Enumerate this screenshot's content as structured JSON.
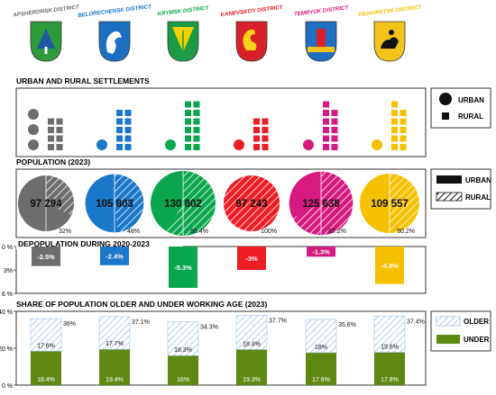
{
  "districts": [
    {
      "name": "APSHERONSK DISTRICT",
      "color": "#6d6d6d",
      "emblem": "green-shield-with-blue-and-white-tree-icon"
    },
    {
      "name": "BELORECHENSK DISTRICT",
      "color": "#1a77c9",
      "emblem": "blue-shield-with-white-stag-head-icon"
    },
    {
      "name": "KRYMSK DISTRICT",
      "color": "#0aa64e",
      "emblem": "green-shield-with-yellow-wheat-icon"
    },
    {
      "name": "KANEVSKOY DISTRICT",
      "color": "#ee1c23",
      "emblem": "red-shield-with-yellow-dragon-icon"
    },
    {
      "name": "TEMRYUK DISTRICT",
      "color": "#d6197e",
      "emblem": "blue-shield-with-red-tower-icon"
    },
    {
      "name": "TIKHORETSK DISTRICT",
      "color": "#f5c000",
      "emblem": "yellow-shield-with-black-horseman-icon"
    }
  ],
  "settlements": {
    "title": "URBAN AND RURAL SETTLEMENTS",
    "legend": {
      "urban": "URBAN",
      "rural": "RURAL"
    },
    "urban_counts": [
      3,
      1,
      1,
      1,
      1,
      1
    ],
    "rural_counts": [
      8,
      10,
      12,
      8,
      11,
      11
    ]
  },
  "population": {
    "title": "POPULATION (2023)",
    "legend": {
      "urban": "URBAN",
      "rural": "RURAL"
    },
    "values": [
      "97 294",
      "105 803",
      "130 802",
      "97 243",
      "125 638",
      "109 557"
    ],
    "rural_share_labels": [
      "32%",
      "48%",
      "58.4%",
      "100%",
      "67.2%",
      "50.2%"
    ],
    "rural_share": [
      0.32,
      0.48,
      0.584,
      1.0,
      0.672,
      0.502
    ]
  },
  "chart_data": [
    {
      "type": "bar",
      "title": "DEPOPULATION DURING 2020-2023",
      "categories": [
        "APSHERONSK DISTRICT",
        "BELORECHENSK DISTRICT",
        "KRYMSK DISTRICT",
        "KANEVSKOY DISTRICT",
        "TEMRYUK DISTRICT",
        "TIKHORETSK DISTRICT"
      ],
      "values": [
        -2.5,
        -2.4,
        -5.3,
        -3,
        -1.3,
        -4.8
      ],
      "value_labels": [
        "-2.5%",
        "-2.4%",
        "-5.3%",
        "-3%",
        "-1.3%",
        "-4.8%"
      ],
      "yticks": [
        "0 %",
        "3%",
        "6 %"
      ],
      "ylim": [
        0,
        6
      ]
    },
    {
      "type": "bar",
      "title": "SHARE OF POPULATION OLDER AND UNDER WORKING AGE (2023)",
      "categories": [
        "APSHERONSK DISTRICT",
        "BELORECHENSK DISTRICT",
        "KRYMSK DISTRICT",
        "KANEVSKOY DISTRICT",
        "TEMRYUK DISTRICT",
        "TIKHORETSK DISTRICT"
      ],
      "series": [
        {
          "name": "UNDER",
          "values": [
            18.4,
            19.4,
            16,
            19.3,
            17.6,
            17.8
          ],
          "labels": [
            "18.4%",
            "19.4%",
            "16%",
            "19.3%",
            "17.6%",
            "17.8%"
          ],
          "color": "#5e8a14"
        },
        {
          "name": "OLDER",
          "values": [
            17.6,
            17.7,
            18.3,
            18.4,
            18,
            19.6
          ],
          "labels": [
            "17.6%",
            "17.7%",
            "18.3%",
            "18.4%",
            "18%",
            "19.6%"
          ],
          "color": "#9ec3e6"
        }
      ],
      "total_labels": [
        "36%",
        "37.1%",
        "34.3%",
        "37.7%",
        "35.6%",
        "37.4%"
      ],
      "totals": [
        36,
        37.1,
        34.3,
        37.7,
        35.6,
        37.4
      ],
      "yticks": [
        "40 %",
        "20 %",
        "0 %"
      ],
      "ylim": [
        0,
        40
      ]
    }
  ]
}
